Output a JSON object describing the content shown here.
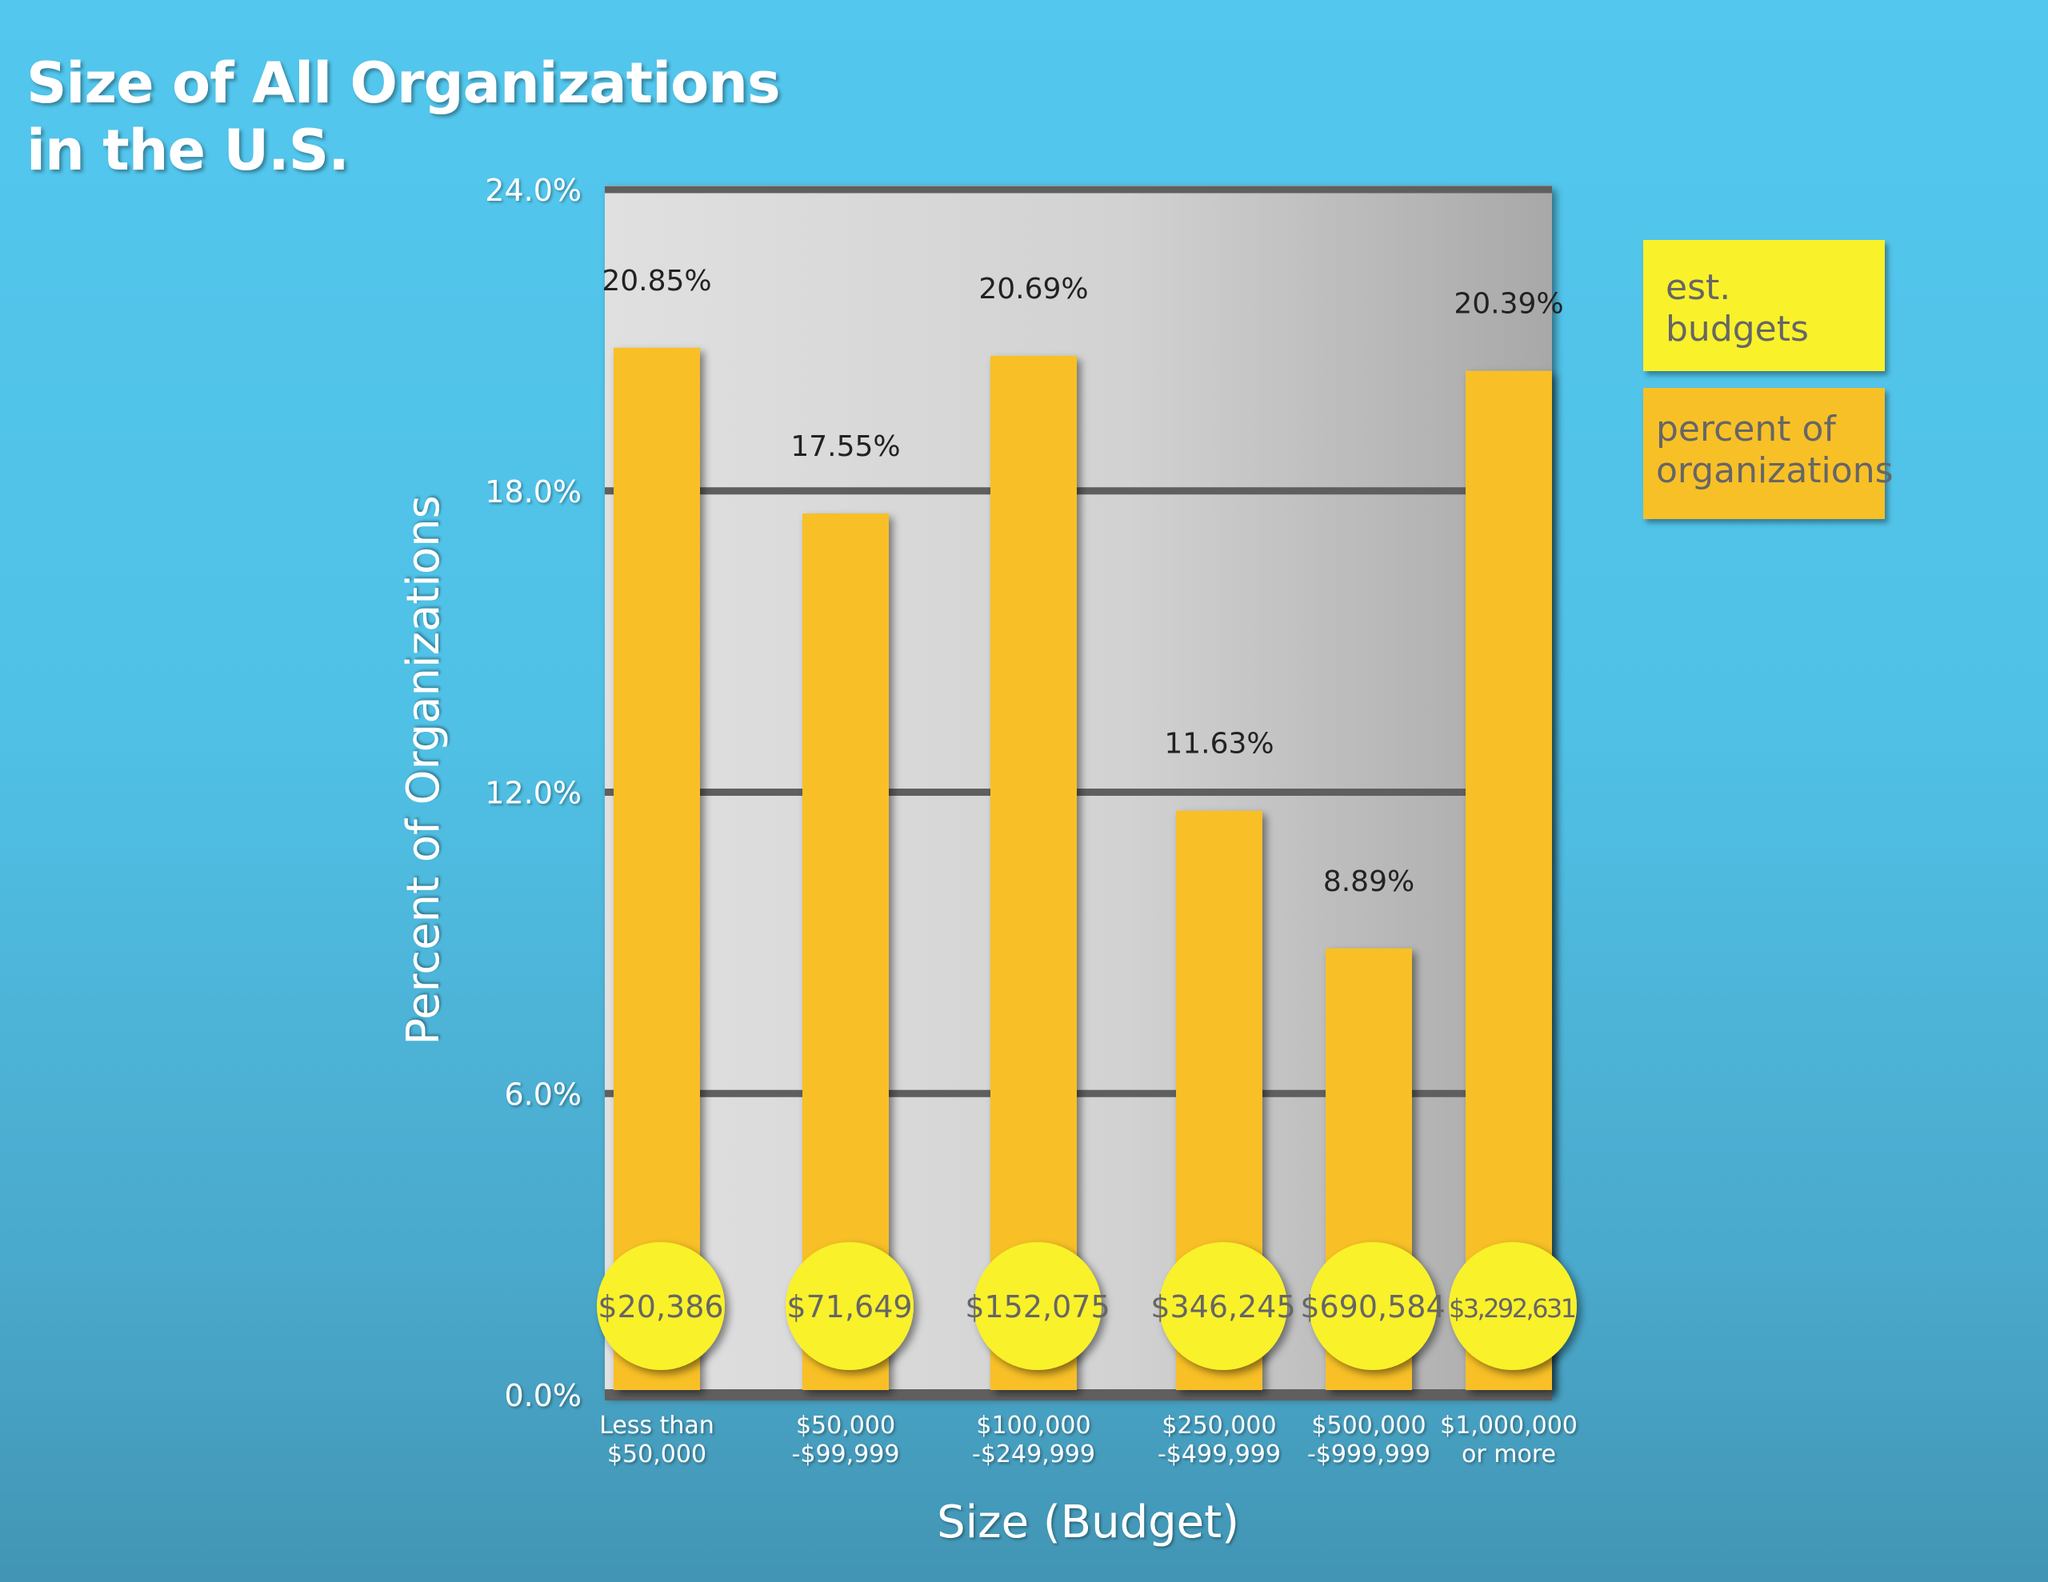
{
  "chart_data": {
    "type": "bar",
    "title": "Size of All Organizations in the U.S.",
    "title_lines": [
      "Size of All Organizations",
      "in the U.S."
    ],
    "xlabel": "Size (Budget)",
    "ylabel": "Percent of Organizations",
    "ylim": [
      0,
      24
    ],
    "yticks": [
      "0.0%",
      "6.0%",
      "12.0%",
      "18.0%",
      "24.0%"
    ],
    "ytick_values": [
      0,
      6,
      12,
      18,
      24
    ],
    "grid": true,
    "categories": [
      [
        "Less than",
        "$50,000"
      ],
      [
        "$50,000",
        "-$99,999"
      ],
      [
        "$100,000",
        "-$249,999"
      ],
      [
        "$250,000",
        "-$499,999"
      ],
      [
        "$500,000",
        "-$999,999"
      ],
      [
        "$1,000,000",
        "or more"
      ]
    ],
    "series": [
      {
        "name": "percent of organizations",
        "values": [
          20.85,
          17.55,
          20.69,
          11.63,
          8.89,
          20.39
        ],
        "labels": [
          "20.85%",
          "17.55%",
          "20.69%",
          "11.63%",
          "8.89%",
          "20.39%"
        ],
        "color": "#f8c027"
      },
      {
        "name": "est. budgets",
        "values": [
          20386,
          71649,
          152075,
          346245,
          690584,
          3292631
        ],
        "labels": [
          "$20,386",
          "$71,649",
          "$152,075",
          "$346,245",
          "$690,584",
          "$3,292,631"
        ],
        "color": "#f9f12a"
      }
    ],
    "legend": {
      "placement": "right",
      "items": [
        {
          "lines": [
            "est.",
            "budgets"
          ],
          "color": "#f9f12a"
        },
        {
          "lines": [
            "percent of",
            "organizations"
          ],
          "color": "#f8c027"
        }
      ]
    }
  }
}
